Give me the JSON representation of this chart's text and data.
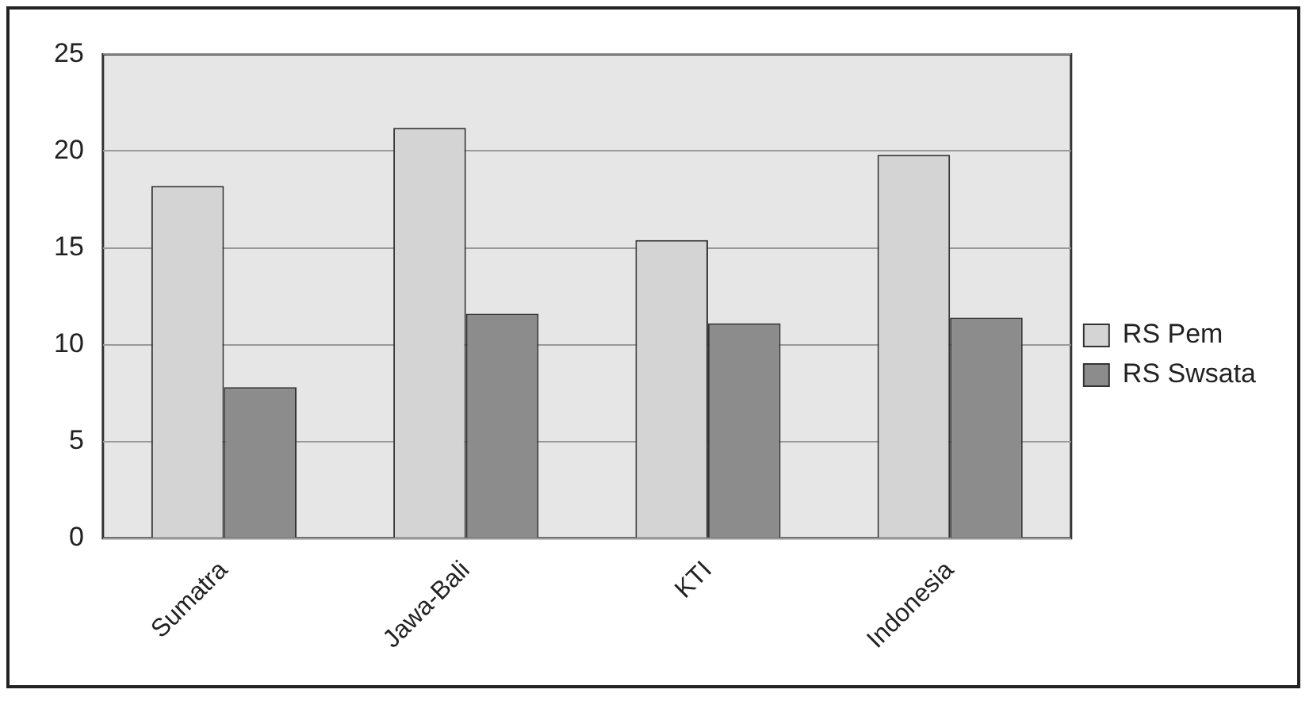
{
  "chart_data": {
    "type": "bar",
    "categories": [
      "Sumatra",
      "Jawa-Bali",
      "KTI",
      "Indonesia"
    ],
    "series": [
      {
        "name": "RS Pem",
        "color": "#d4d4d4",
        "values": [
          18.2,
          21.2,
          15.4,
          19.8
        ]
      },
      {
        "name": "RS Swsata",
        "color": "#8c8c8c",
        "values": [
          7.8,
          11.6,
          11.1,
          11.4
        ]
      }
    ],
    "ylim": [
      0,
      25
    ],
    "yticks": [
      0,
      5,
      10,
      15,
      20,
      25
    ],
    "grid": "y",
    "legend": "right"
  }
}
